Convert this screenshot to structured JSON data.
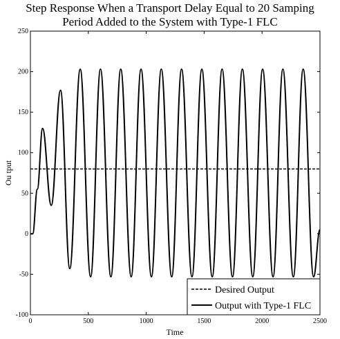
{
  "chart_data": {
    "type": "line",
    "title_lines": [
      "Step Response When a Transport Delay Equal to 20 Samping",
      "Period  Added to the System with Type-1 FLC"
    ],
    "xlabel": "Time",
    "ylabel": "Ou tput",
    "xlim": [
      0,
      2500
    ],
    "ylim": [
      -100,
      250
    ],
    "xticks": [
      0,
      500,
      1000,
      1500,
      2000,
      2500
    ],
    "yticks": [
      -100,
      -50,
      0,
      50,
      100,
      150,
      200,
      250
    ],
    "grid": false,
    "legend_position": "bottom-right",
    "series": [
      {
        "name": "Desired Output",
        "style": "dashed",
        "color": "#000000",
        "x": [
          0,
          2500
        ],
        "y": [
          80,
          80
        ]
      },
      {
        "name": "Output with Type-1 FLC",
        "style": "solid",
        "color": "#000000",
        "x": [
          0,
          20,
          60,
          105,
          180,
          260,
          340,
          430,
          520,
          605,
          695,
          780,
          870,
          955,
          1045,
          1130,
          1220,
          1305,
          1395,
          1480,
          1570,
          1655,
          1745,
          1830,
          1920,
          2005,
          2095,
          2180,
          2270,
          2355,
          2445,
          2500
        ],
        "y": [
          0,
          0,
          55,
          130,
          35,
          177,
          -43,
          203,
          -53,
          203,
          -53,
          203,
          -53,
          203,
          -53,
          203,
          -53,
          203,
          -53,
          203,
          -53,
          203,
          -53,
          203,
          -53,
          203,
          -53,
          203,
          -53,
          203,
          -53,
          5
        ]
      }
    ]
  }
}
